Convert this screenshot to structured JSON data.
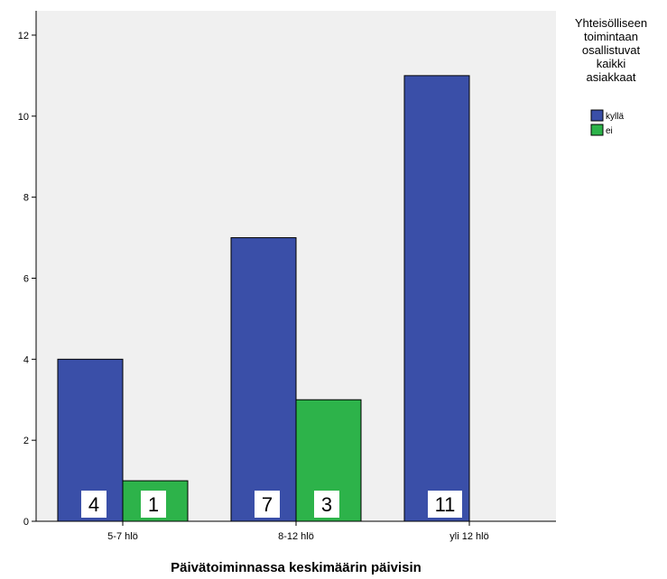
{
  "chart_data": {
    "type": "bar",
    "categories": [
      "5-7 hlö",
      "8-12 hlö",
      "yli 12 hlö"
    ],
    "series": [
      {
        "name": "kyllä",
        "color": "#3a4fa8",
        "values": [
          4,
          7,
          11
        ]
      },
      {
        "name": "ei",
        "color": "#2db34a",
        "values": [
          1,
          3,
          0
        ]
      }
    ],
    "data_labels": [
      {
        "series": 0,
        "category": 0,
        "text": "4"
      },
      {
        "series": 1,
        "category": 0,
        "text": "1"
      },
      {
        "series": 0,
        "category": 1,
        "text": "7"
      },
      {
        "series": 1,
        "category": 1,
        "text": "3"
      },
      {
        "series": 0,
        "category": 2,
        "text": "11"
      }
    ],
    "xlabel": "Päivätoiminnassa keskimäärin päivisin",
    "ylabel": "",
    "ylim": [
      0,
      12.6
    ],
    "yticks": [
      0,
      2,
      4,
      6,
      8,
      10,
      12
    ],
    "plot_background": "#f0f0f0",
    "grid": false,
    "legend": {
      "placement": "right",
      "title_lines": [
        "Yhteisölliseen",
        "toimintaan",
        "osallistuvat",
        "kaikki",
        "asiakkaat"
      ]
    }
  }
}
